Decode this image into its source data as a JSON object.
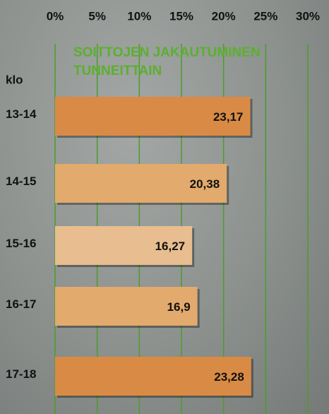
{
  "chart_data": {
    "type": "hbar",
    "title": "SOITTOJEN JAKAUTUMINEN TUNNEITTAIN",
    "ylabel": "klo",
    "categories": [
      "13-14",
      "14-15",
      "15-16",
      "16-17",
      "17-18"
    ],
    "values": [
      23.17,
      20.38,
      16.27,
      16.9,
      23.28
    ],
    "value_labels": [
      "23,17",
      "20,38",
      "16,27",
      "16,9",
      "23,28"
    ],
    "colors": [
      "#d98b45",
      "#e2aa6c",
      "#e8bd8f",
      "#e2aa6c",
      "#d98b45"
    ],
    "xlim": [
      0,
      30
    ],
    "xticks": [
      {
        "value": 0,
        "label": "0%"
      },
      {
        "value": 5,
        "label": "5%"
      },
      {
        "value": 10,
        "label": "10%"
      },
      {
        "value": 15,
        "label": "15%"
      },
      {
        "value": 20,
        "label": "20%"
      },
      {
        "value": 25,
        "label": "25%"
      },
      {
        "value": 30,
        "label": "30%"
      }
    ],
    "grid": true,
    "grid_color": "#4f9b2c",
    "title_color": "#5bb02e"
  }
}
